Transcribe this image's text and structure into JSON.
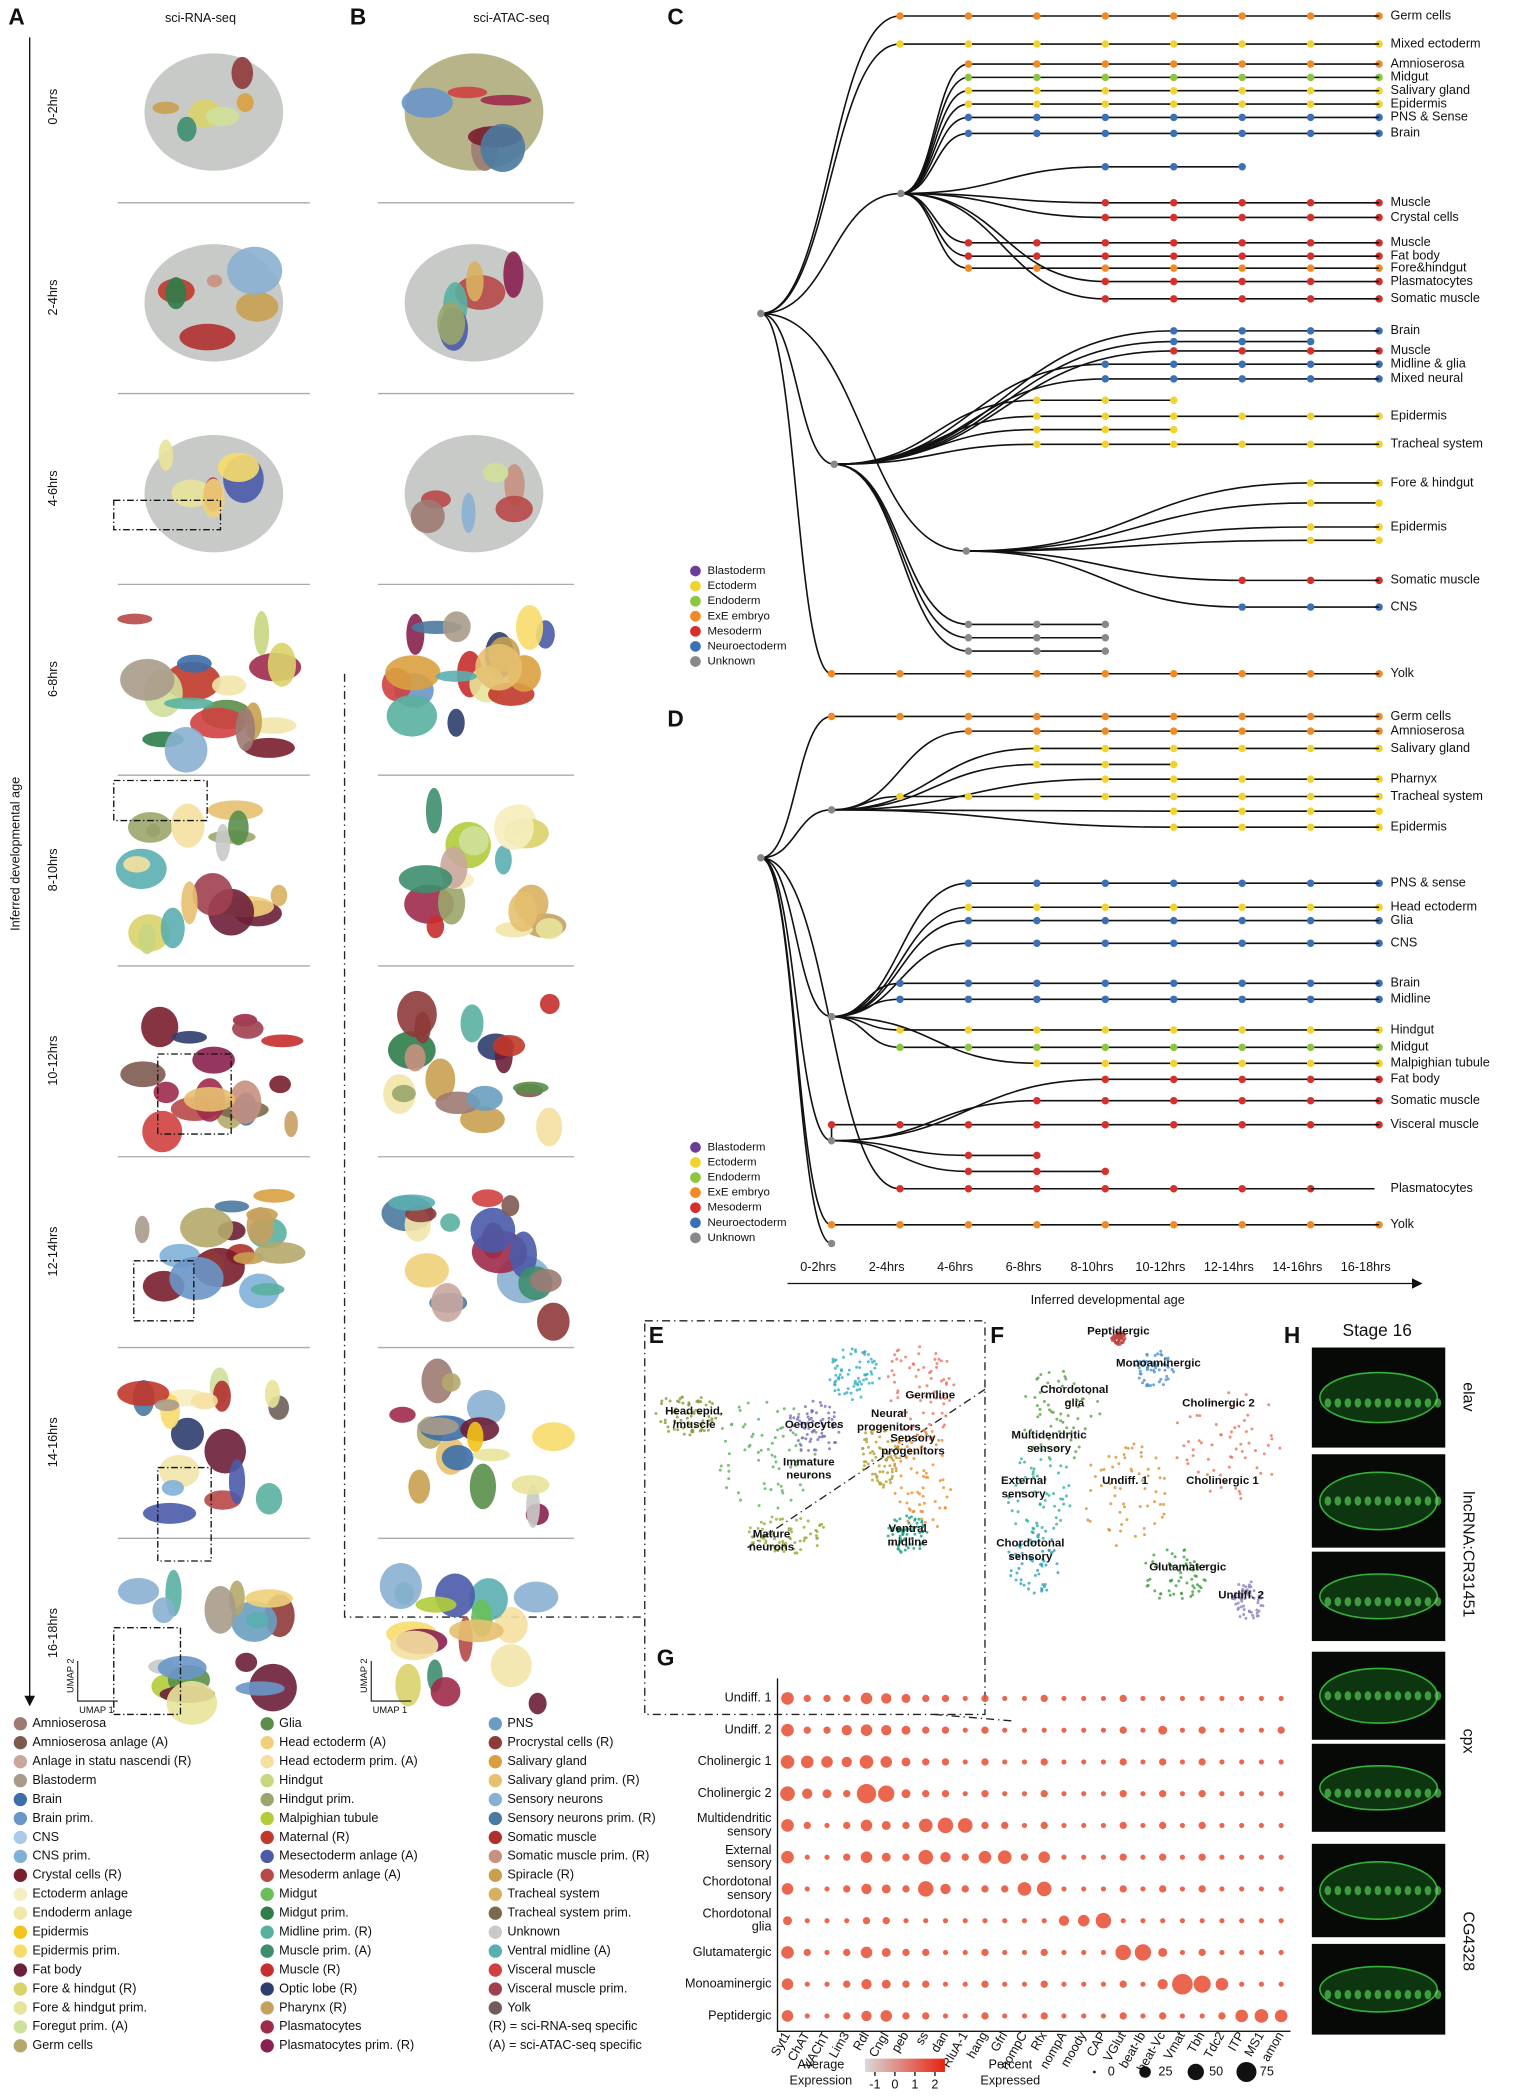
{
  "panel_a": {
    "label": "A",
    "title": "sci-RNA-seq",
    "axis_label": "Inferred developmental age",
    "umap_x": "UMAP 1",
    "umap_y": "UMAP 2"
  },
  "panel_b": {
    "label": "B",
    "title": "sci-ATAC-seq",
    "umap_x": "UMAP 1",
    "umap_y": "UMAP 2"
  },
  "time_windows": [
    "0-2hrs",
    "2-4hrs",
    "4-6hrs",
    "6-8hrs",
    "8-10hrs",
    "10-12hrs",
    "12-14hrs",
    "14-16hrs",
    "16-18hrs"
  ],
  "cell_type_legend": {
    "columns": [
      [
        {
          "name": "Amnioserosa",
          "color": "#9c7b73"
        },
        {
          "name": "Amnioserosa anlage (A)",
          "color": "#7d5a50"
        },
        {
          "name": "Anlage in statu nascendi (R)",
          "color": "#c9a79e"
        },
        {
          "name": "Blastoderm",
          "color": "#a89b8a"
        },
        {
          "name": "Brain",
          "color": "#3c6ea8"
        },
        {
          "name": "Brain prim.",
          "color": "#6a96c8"
        },
        {
          "name": "CNS",
          "color": "#a9cbe8"
        },
        {
          "name": "CNS prim.",
          "color": "#7fb0d8"
        },
        {
          "name": "Crystal cells (R)",
          "color": "#7a1e2e"
        },
        {
          "name": "Ectoderm anlage",
          "color": "#f6eec0"
        },
        {
          "name": "Endoderm anlage",
          "color": "#f2e6a8"
        },
        {
          "name": "Epidermis",
          "color": "#f2c318"
        },
        {
          "name": "Epidermis prim.",
          "color": "#f7dc6b"
        },
        {
          "name": "Fat body",
          "color": "#6b1f3a"
        },
        {
          "name": "Fore & hindgut (R)",
          "color": "#d9d36a"
        },
        {
          "name": "Fore & hindgut prim.",
          "color": "#e8e39a"
        },
        {
          "name": "Foregut prim. (A)",
          "color": "#cfe09a"
        },
        {
          "name": "Germ cells",
          "color": "#b4a86a"
        }
      ],
      [
        {
          "name": "Glia",
          "color": "#5a8e4a"
        },
        {
          "name": "Head ectoderm (A)",
          "color": "#f0d07a"
        },
        {
          "name": "Head ectoderm prim. (A)",
          "color": "#f5e0a0"
        },
        {
          "name": "Hindgut",
          "color": "#c8d680"
        },
        {
          "name": "Hindgut prim.",
          "color": "#9aa66a"
        },
        {
          "name": "Malpighian tubule",
          "color": "#b3cc3a"
        },
        {
          "name": "Maternal (R)",
          "color": "#c0392b"
        },
        {
          "name": "Mesectoderm anlage (A)",
          "color": "#4a5ba8"
        },
        {
          "name": "Mesoderm anlage (A)",
          "color": "#b84848"
        },
        {
          "name": "Midgut",
          "color": "#6abf5a"
        },
        {
          "name": "Midgut prim.",
          "color": "#2e7d4a"
        },
        {
          "name": "Midline prim. (R)",
          "color": "#5ab0a0"
        },
        {
          "name": "Muscle prim. (A)",
          "color": "#3e8e6e"
        },
        {
          "name": "Muscle (R)",
          "color": "#c72e2e"
        },
        {
          "name": "Optic lobe (R)",
          "color": "#2e3e6e"
        },
        {
          "name": "Pharynx (R)",
          "color": "#c7a060"
        },
        {
          "name": "Plasmatocytes",
          "color": "#9e2a4a"
        },
        {
          "name": "Plasmatocytes prim. (R)",
          "color": "#8a2050"
        }
      ],
      [
        {
          "name": "PNS",
          "color": "#6a9ec0"
        },
        {
          "name": "Procrystal cells (R)",
          "color": "#8e3a3a"
        },
        {
          "name": "Salivary gland",
          "color": "#d9a040"
        },
        {
          "name": "Salivary gland prim. (R)",
          "color": "#e6c070"
        },
        {
          "name": "Sensory neurons",
          "color": "#88b0d0"
        },
        {
          "name": "Sensory neurons prim. (R)",
          "color": "#4a7aa0"
        },
        {
          "name": "Somatic muscle",
          "color": "#b03030"
        },
        {
          "name": "Somatic muscle prim. (R)",
          "color": "#c89080"
        },
        {
          "name": "Spiracle (R)",
          "color": "#c8a050"
        },
        {
          "name": "Tracheal system",
          "color": "#d8b060"
        },
        {
          "name": "Tracheal system prim.",
          "color": "#7a6a4a"
        },
        {
          "name": "Unknown",
          "color": "#c8cac8"
        },
        {
          "name": "Ventral midline (A)",
          "color": "#5aaeb0"
        },
        {
          "name": "Visceral muscle",
          "color": "#d04040"
        },
        {
          "name": "Visceral muscle prim.",
          "color": "#a04050"
        },
        {
          "name": "Yolk",
          "color": "#6e5e58"
        }
      ]
    ],
    "notes": [
      "(R) = sci-RNA-seq specific",
      "(A) = sci-ATAC-seq specific"
    ]
  },
  "germ_layers": [
    {
      "name": "Blastoderm",
      "color": "#6a3d9a"
    },
    {
      "name": "Ectoderm",
      "color": "#f2d22e"
    },
    {
      "name": "Endoderm",
      "color": "#8cc63f"
    },
    {
      "name": "ExE embryo",
      "color": "#f08a24"
    },
    {
      "name": "Mesoderm",
      "color": "#d7302c"
    },
    {
      "name": "Neuroectoderm",
      "color": "#3b6fb6"
    },
    {
      "name": "Unknown",
      "color": "#888888"
    }
  ],
  "panel_c": {
    "label": "C",
    "leaves": [
      "Germ cells",
      "Mixed ectoderm",
      "Amnioserosa",
      "Midgut",
      "Salivary gland",
      "Epidermis",
      "PNS & Sense",
      "Brain",
      "Muscle",
      "Crystal cells",
      "Muscle",
      "Fat body",
      "Fore&hindgut",
      "Plasmatocytes",
      "Somatic muscle",
      "Brain",
      "Muscle",
      "Midline & glia",
      "Mixed neural",
      "Epidermis",
      "Tracheal system",
      "Fore & hindgut",
      "Epidermis",
      "Somatic muscle",
      "CNS",
      "Yolk"
    ]
  },
  "panel_d": {
    "label": "D",
    "leaves": [
      "Germ cells",
      "Amnioserosa",
      "Salivary gland",
      "Pharnyx",
      "Tracheal system",
      "Epidermis",
      "PNS & sense",
      "Head ectoderm",
      "Glia",
      "CNS",
      "Brain",
      "Midline",
      "Hindgut",
      "Midgut",
      "Malpighian tubule",
      "Fat body",
      "Somatic muscle",
      "Visceral muscle",
      "Plasmatocytes",
      "Yolk"
    ],
    "x_ticks": [
      "0-2hrs",
      "2-4hrs",
      "4-6hrs",
      "6-8hrs",
      "8-10hrs",
      "10-12hrs",
      "12-14hrs",
      "14-16hrs",
      "16-18hrs"
    ],
    "x_label": "Inferred developmental age"
  },
  "panel_e": {
    "label": "E",
    "clusters": [
      [
        "Head epid.",
        "/muscle"
      ],
      [
        "Oenocytes"
      ],
      [
        "Germline"
      ],
      [
        "Neural",
        "progenitors"
      ],
      [
        "Sensory",
        "progenitors"
      ],
      [
        "Immature",
        "neurons"
      ],
      [
        "Mature",
        "neurons"
      ],
      [
        "Ventral",
        "midline"
      ]
    ]
  },
  "panel_f": {
    "label": "F",
    "clusters": [
      [
        "Peptidergic"
      ],
      [
        "Monoaminergic"
      ],
      [
        "Chordotonal",
        "glia"
      ],
      [
        "Cholinergic 2"
      ],
      [
        "Multidendritic",
        "sensory"
      ],
      [
        "External",
        "sensory"
      ],
      [
        "Undiff. 1"
      ],
      [
        "Cholinergic 1"
      ],
      [
        "Chordotonal",
        "sensory"
      ],
      [
        "Glutamatergic"
      ],
      [
        "Undiff. 2"
      ]
    ]
  },
  "panel_g": {
    "label": "G",
    "rows": [
      [
        "Undiff. 1"
      ],
      [
        "Undiff. 2"
      ],
      [
        "Cholinergic 1"
      ],
      [
        "Cholinergic 2"
      ],
      [
        "Multidendritic",
        "sensory"
      ],
      [
        "External",
        "sensory"
      ],
      [
        "Chordotonal",
        "sensory"
      ],
      [
        "Chordotonal",
        "glia"
      ],
      [
        "Glutamatergic"
      ],
      [
        "Monoaminergic"
      ],
      [
        "Peptidergic"
      ]
    ],
    "genes": [
      "Syt1",
      "ChAT",
      "VAChT",
      "Lim3",
      "Rdl",
      "CngI",
      "peb",
      "ss",
      "dan",
      "RluA-1",
      "hang",
      "Gfrl",
      "nompC",
      "Rfx",
      "nompA",
      "moody",
      "CAP",
      "VGlut",
      "beat-Ib",
      "beat-Vc",
      "Vmat",
      "Tbh",
      "Tdc2",
      "ITP",
      "MS1",
      "amon"
    ],
    "percent": [
      [
        30,
        10,
        10,
        10,
        25,
        20,
        15,
        10,
        10,
        5,
        10,
        5,
        5,
        10,
        5,
        5,
        5,
        10,
        5,
        5,
        5,
        5,
        5,
        5,
        5,
        5
      ],
      [
        30,
        10,
        10,
        20,
        25,
        20,
        15,
        10,
        10,
        5,
        10,
        5,
        5,
        5,
        5,
        5,
        5,
        10,
        5,
        15,
        5,
        10,
        5,
        5,
        5,
        10
      ],
      [
        35,
        30,
        25,
        20,
        35,
        25,
        15,
        10,
        10,
        5,
        10,
        5,
        5,
        10,
        5,
        5,
        5,
        10,
        5,
        10,
        5,
        10,
        5,
        5,
        5,
        5
      ],
      [
        40,
        20,
        15,
        10,
        70,
        50,
        15,
        10,
        10,
        5,
        10,
        5,
        5,
        10,
        5,
        5,
        5,
        10,
        5,
        10,
        5,
        10,
        5,
        5,
        5,
        5
      ],
      [
        30,
        10,
        5,
        10,
        25,
        15,
        10,
        35,
        45,
        40,
        10,
        10,
        5,
        10,
        5,
        5,
        5,
        10,
        5,
        10,
        5,
        10,
        5,
        5,
        5,
        5
      ],
      [
        30,
        5,
        5,
        10,
        25,
        15,
        10,
        40,
        20,
        10,
        30,
        35,
        10,
        25,
        5,
        5,
        5,
        10,
        5,
        10,
        5,
        10,
        5,
        5,
        5,
        5
      ],
      [
        25,
        5,
        5,
        10,
        20,
        15,
        10,
        45,
        20,
        10,
        10,
        10,
        35,
        40,
        5,
        5,
        5,
        10,
        5,
        10,
        5,
        10,
        5,
        5,
        5,
        5
      ],
      [
        15,
        5,
        5,
        5,
        10,
        10,
        5,
        5,
        5,
        5,
        5,
        5,
        5,
        5,
        20,
        25,
        45,
        5,
        5,
        5,
        5,
        5,
        5,
        5,
        5,
        5
      ],
      [
        30,
        10,
        5,
        10,
        25,
        15,
        10,
        10,
        5,
        5,
        10,
        5,
        5,
        10,
        5,
        5,
        5,
        45,
        50,
        15,
        5,
        10,
        5,
        5,
        5,
        5
      ],
      [
        25,
        5,
        5,
        10,
        20,
        15,
        10,
        10,
        5,
        5,
        10,
        5,
        5,
        10,
        5,
        5,
        5,
        10,
        5,
        20,
        80,
        55,
        30,
        5,
        5,
        5
      ],
      [
        25,
        5,
        5,
        10,
        20,
        25,
        10,
        10,
        5,
        5,
        10,
        5,
        5,
        10,
        5,
        5,
        5,
        10,
        5,
        10,
        5,
        5,
        10,
        30,
        35,
        30
      ]
    ],
    "color": "#e8553b",
    "expression_label": [
      "Average",
      "Expression"
    ],
    "expression_lim": [
      -1.5,
      2.5
    ],
    "expression_ticks": [
      -1,
      0,
      1,
      2
    ],
    "expression_colors": [
      "#d9d9d9",
      "#e8220f"
    ],
    "percent_label": [
      "Percent",
      "Expressed"
    ],
    "percent_ticks": [
      0,
      25,
      50,
      75
    ]
  },
  "panel_h": {
    "label": "H",
    "title": "Stage 16",
    "genes": [
      "elav",
      "lncRNA:CR31451",
      "cpx",
      "CG4328"
    ]
  }
}
